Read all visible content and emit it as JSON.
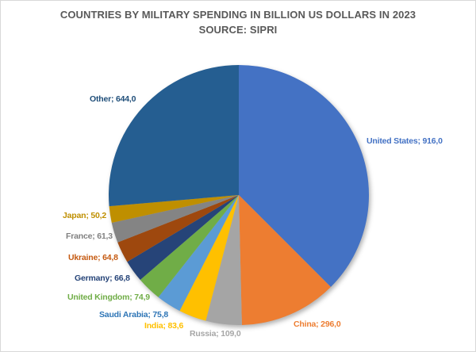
{
  "frame": {
    "background": "#FFFFFF",
    "border_color": "#D9D9D9"
  },
  "chart_data": {
    "type": "pie",
    "title": "COUNTRIES BY MILITARY SPENDING IN BILLION US DOLLARS IN 2023",
    "subtitle": "SOURCE: SIPRI",
    "title_color": "#595959",
    "legend": "none",
    "gridlines": false,
    "value_format": "decimal-comma",
    "start_angle_deg": 0,
    "direction": "clockwise",
    "total": 2442.4,
    "slices": [
      {
        "name": "United States",
        "value": 916.0,
        "label": "United States; 916,0",
        "color": "#4472C4",
        "label_color": "#4472C4"
      },
      {
        "name": "China",
        "value": 296.0,
        "label": "China; 296,0",
        "color": "#ED7D31",
        "label_color": "#ED7D31"
      },
      {
        "name": "Russia",
        "value": 109.0,
        "label": "Russia; 109,0",
        "color": "#A5A5A5",
        "label_color": "#A6A6A6"
      },
      {
        "name": "India",
        "value": 83.6,
        "label": "India; 83,6",
        "color": "#FFC000",
        "label_color": "#FFC000"
      },
      {
        "name": "Saudi Arabia",
        "value": 75.8,
        "label": "Saudi Arabia; 75,8",
        "color": "#5B9BD5",
        "label_color": "#2E75B6"
      },
      {
        "name": "United Kingdom",
        "value": 74.9,
        "label": "United Kingdom; 74,9",
        "color": "#70AD47",
        "label_color": "#70AD47"
      },
      {
        "name": "Germany",
        "value": 66.8,
        "label": "Germany; 66,8",
        "color": "#264478",
        "label_color": "#264478"
      },
      {
        "name": "Ukraine",
        "value": 64.8,
        "label": "Ukraine; 64,8",
        "color": "#9E480E",
        "label_color": "#C55A11"
      },
      {
        "name": "France",
        "value": 61.3,
        "label": "France; 61,3",
        "color": "#848484",
        "label_color": "#808080"
      },
      {
        "name": "Japan",
        "value": 50.2,
        "label": "Japan; 50,2",
        "color": "#BF8F00",
        "label_color": "#BF8F00"
      },
      {
        "name": "Other",
        "value": 644.0,
        "label": "Other; 644,0",
        "color": "#255E91",
        "label_color": "#1F4E79"
      }
    ]
  }
}
